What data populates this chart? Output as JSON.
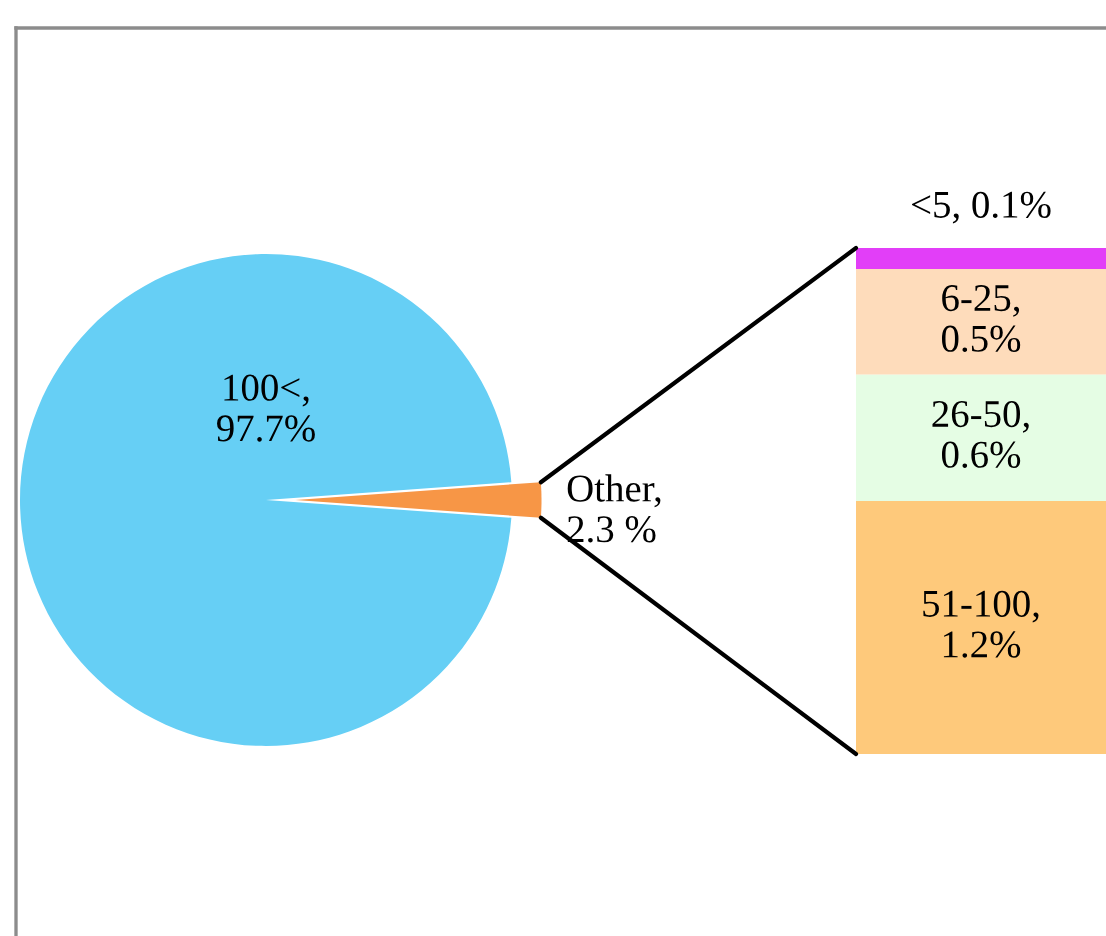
{
  "chart_data": [
    {
      "type": "pie",
      "categories": [
        null,
        null
      ],
      "values": [
        97.7,
        2.3
      ],
      "colors": [
        "#66cff5",
        "#f79646"
      ],
      "value_labels": [
        "100<, 97.7%",
        "Other, 2.3 %"
      ]
    },
    {
      "type": "bar",
      "stacked": true,
      "categories": [
        null
      ],
      "tick_labels": false,
      "series": [
        {
          "color": "#fec97b",
          "values": [
            1.2
          ],
          "value_labels": [
            "51-100, 1.2%"
          ]
        },
        {
          "color": "#e5fde4",
          "values": [
            0.6
          ],
          "value_labels": [
            "26-50, 0.6%"
          ]
        },
        {
          "color": "#fedcbb",
          "values": [
            0.5
          ],
          "value_labels": [
            "6-25, 0.5%"
          ]
        },
        {
          "color": "#e23ef8",
          "values": [
            0.1
          ],
          "value_labels": [
            "<5, 0.1%"
          ]
        }
      ]
    }
  ]
}
